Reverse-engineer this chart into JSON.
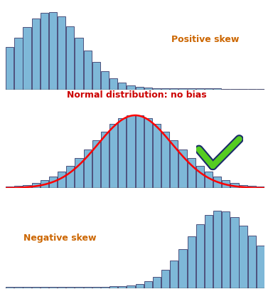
{
  "background_color": "#ffffff",
  "bar_color": "#7eb8d8",
  "bar_edgecolor": "#3a3a6a",
  "bar_alpha": 1.0,
  "n_bins": 30,
  "title1": "Positive skew",
  "title2": "Normal distribution: no bias",
  "title3": "Negative skew",
  "title1_color": "#cc6600",
  "title2_color": "#cc0000",
  "title3_color": "#cc6600",
  "title_fontsize": 9,
  "curve_color": "#ff0000",
  "curve_linewidth": 1.8,
  "check_green": "#55cc22",
  "check_dark": "#1a2a6a",
  "baseline_color": "#333333",
  "baseline_lw": 1.0
}
